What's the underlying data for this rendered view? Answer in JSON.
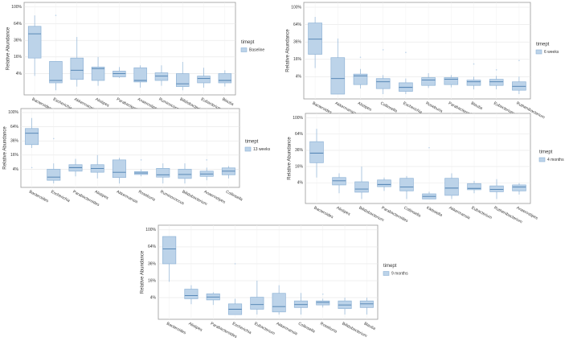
{
  "chart_data": [
    {
      "type": "box",
      "y_label": "Relative Abundance",
      "legend_title": "timept",
      "yscale": "sqrt",
      "grid": true,
      "categories": [
        "Bacteroides",
        "Escherichia",
        "Akkermansia",
        "Alistipes",
        "Parabacteroides",
        "Anaerostipes",
        "Ruminococcus",
        "Bifidobacterium",
        "Eubacterium",
        "Blautia"
      ],
      "series": [
        {
          "name": "Baseline",
          "color": "#bcd3e9",
          "min": [
            3,
            0,
            0.2,
            0.3,
            2.2,
            0.1,
            0.3,
            0,
            0.1,
            0.2
          ],
          "q1": [
            15,
            0.8,
            1.7,
            1.4,
            2.6,
            1,
            1.4,
            0.2,
            0.8,
            0.8
          ],
          "median": [
            46,
            1.4,
            5.8,
            6.8,
            4,
            1.4,
            2.9,
            0.6,
            2,
            1.4
          ],
          "q3": [
            59,
            12,
            15,
            7.8,
            5.3,
            7.3,
            4.4,
            4,
            2.9,
            4
          ],
          "max": [
            81,
            12,
            41,
            16,
            7.8,
            9,
            9,
            11.6,
            7.3,
            5.8
          ],
          "outliers": [
            [],
            [
              81
            ],
            [],
            [],
            [],
            [],
            [],
            [],
            [],
            []
          ]
        }
      ],
      "ylim": [
        0,
        100
      ],
      "yticks": [
        {
          "value": 4,
          "label": "4%"
        },
        {
          "value": 16,
          "label": "16%"
        },
        {
          "value": 36,
          "label": "36%"
        },
        {
          "value": 64,
          "label": "64%"
        },
        {
          "value": 100,
          "label": "100%"
        }
      ]
    },
    {
      "type": "box",
      "y_label": "Relative Abundance",
      "legend_title": "timept",
      "yscale": "sqrt",
      "grid": true,
      "categories": [
        "Bacteroides",
        "Akkermansia",
        "Alistipes",
        "Collinsella",
        "Escherichia",
        "Roseburia",
        "Parabacteroides",
        "Blautia",
        "Eubacterium",
        "Ruthenibacterium"
      ],
      "series": [
        {
          "name": "6 weeks",
          "color": "#bcd3e9",
          "min": [
            9,
            0,
            0.4,
            0,
            0,
            0.5,
            0.6,
            0.3,
            0.3,
            0
          ],
          "q1": [
            21,
            0,
            1.2,
            0.4,
            0.1,
            1,
            1.2,
            1,
            1,
            0.2
          ],
          "median": [
            40,
            3.2,
            4.4,
            2,
            0.6,
            2.6,
            2.9,
            2,
            2,
            0.8
          ],
          "q3": [
            67,
            17.6,
            5.3,
            3.2,
            1.7,
            3.6,
            3.6,
            2.6,
            2.9,
            2
          ],
          "max": [
            79,
            41,
            8.4,
            4.8,
            3.2,
            5.8,
            4.8,
            4,
            4.4,
            4
          ],
          "outliers": [
            [],
            [],
            [
              18
            ],
            [
              26
            ],
            [
              23
            ],
            [],
            [],
            [
              12
            ],
            [
              7.8
            ],
            [
              15
            ]
          ]
        }
      ],
      "ylim": [
        0,
        100
      ],
      "yticks": [
        {
          "value": 4,
          "label": "4%"
        },
        {
          "value": 16,
          "label": "16%"
        },
        {
          "value": 36,
          "label": "36%"
        },
        {
          "value": 64,
          "label": "64%"
        },
        {
          "value": 100,
          "label": "100%"
        }
      ]
    },
    {
      "type": "box",
      "y_label": "Relative Abundance",
      "legend_title": "timept",
      "yscale": "sqrt",
      "grid": true,
      "categories": [
        "Bacteroides",
        "Escherichia",
        "Parabacteroides",
        "Alistipes",
        "Akkermansia",
        "Roseburia",
        "Ruminococcus",
        "Bifidobacterium",
        "Anaerostipes",
        "Collinsella"
      ],
      "series": [
        {
          "name": "13 weeks",
          "color": "#bcd3e9",
          "min": [
            25,
            0,
            1,
            0.5,
            0,
            1,
            0,
            0,
            0.2,
            0.5
          ],
          "q1": [
            30,
            0.2,
            3,
            2.5,
            0.7,
            1.6,
            0.8,
            0.5,
            1,
            1.5
          ],
          "median": [
            50,
            0.8,
            5,
            4.5,
            2.5,
            2.2,
            1.5,
            1.6,
            1.8,
            3
          ],
          "q3": [
            60,
            4,
            7,
            7,
            11,
            2.8,
            4.5,
            4,
            3,
            4.8
          ],
          "max": [
            85,
            8,
            12,
            16,
            13,
            4,
            8,
            8,
            5,
            6
          ],
          "outliers": [
            [
              5
            ],
            [
              40
            ],
            [],
            [],
            [],
            [
              11
            ],
            [],
            [],
            [
              11
            ],
            []
          ]
        }
      ],
      "ylim": [
        0,
        100
      ],
      "yticks": [
        {
          "value": 4,
          "label": "4%"
        },
        {
          "value": 16,
          "label": "16%"
        },
        {
          "value": 36,
          "label": "36%"
        },
        {
          "value": 64,
          "label": "64%"
        },
        {
          "value": 100,
          "label": "100%"
        }
      ]
    },
    {
      "type": "box",
      "y_label": "Relative Abundance",
      "legend_title": "timept",
      "yscale": "sqrt",
      "grid": true,
      "categories": [
        "Bacteroides",
        "Alistipes",
        "Bifidobacterium",
        "Parabacteroides",
        "Collinsella",
        "Klebsiella",
        "Akkermansia",
        "Eubacterium",
        "Ruthenibacterium",
        "Anaerostipes"
      ],
      "series": [
        {
          "name": "4 months",
          "color": "#bcd3e9",
          "min": [
            7,
            0.5,
            0,
            1,
            0,
            0,
            0,
            0.5,
            0,
            0.3
          ],
          "q1": [
            20,
            3,
            0.7,
            2.3,
            1,
            0,
            0.2,
            1.3,
            0.8,
            1
          ],
          "median": [
            32,
            5,
            1.5,
            3.2,
            2.2,
            0.1,
            1.8,
            1.7,
            1.4,
            2.2
          ],
          "q3": [
            50,
            7,
            4.5,
            5.5,
            6.5,
            0.4,
            6.5,
            3.6,
            2.6,
            3
          ],
          "max": [
            75,
            10,
            16,
            7,
            8,
            0.8,
            10,
            5,
            6,
            3.8
          ],
          "outliers": [
            [],
            [],
            [],
            [],
            [],
            [
              40
            ],
            [],
            [],
            [],
            []
          ]
        }
      ],
      "ylim": [
        0,
        100
      ],
      "yticks": [
        {
          "value": 4,
          "label": "4%"
        },
        {
          "value": 16,
          "label": "16%"
        },
        {
          "value": 36,
          "label": "36%"
        },
        {
          "value": 64,
          "label": "64%"
        },
        {
          "value": 100,
          "label": "100%"
        }
      ]
    },
    {
      "type": "box",
      "y_label": "Relative Abundance",
      "legend_title": "timept",
      "yscale": "sqrt",
      "grid": true,
      "categories": [
        "Bacteroides",
        "Alistipes",
        "Parabacteroides",
        "Escherichia",
        "Eubacterium",
        "Akkermansia",
        "Collinsella",
        "Roseburia",
        "Bifidobacterium",
        "Blautia"
      ],
      "series": [
        {
          "name": "9 months",
          "color": "#bcd3e9",
          "min": [
            15,
            1.5,
            1.3,
            0,
            0,
            0,
            0,
            0.7,
            0,
            0
          ],
          "q1": [
            36,
            3.5,
            3,
            0,
            0.4,
            0.1,
            0.7,
            1.3,
            0.5,
            0.7
          ],
          "median": [
            60,
            5,
            4.3,
            0.4,
            1.4,
            0.9,
            1.4,
            2.1,
            1.3,
            1.6
          ],
          "q3": [
            85,
            9,
            6,
            1.6,
            4.2,
            6.3,
            2.6,
            2.6,
            2.6,
            2.6
          ],
          "max": [
            85,
            12,
            7,
            3.5,
            16,
            12,
            6.5,
            3.5,
            4,
            4
          ],
          "outliers": [
            [],
            [],
            [],
            [
              36
            ],
            [],
            [],
            [],
            [
              5.8
            ],
            [],
            []
          ]
        }
      ],
      "ylim": [
        0,
        100
      ],
      "yticks": [
        {
          "value": 4,
          "label": "4%"
        },
        {
          "value": 16,
          "label": "16%"
        },
        {
          "value": 36,
          "label": "36%"
        },
        {
          "value": 64,
          "label": "64%"
        },
        {
          "value": 100,
          "label": "100%"
        }
      ]
    }
  ]
}
